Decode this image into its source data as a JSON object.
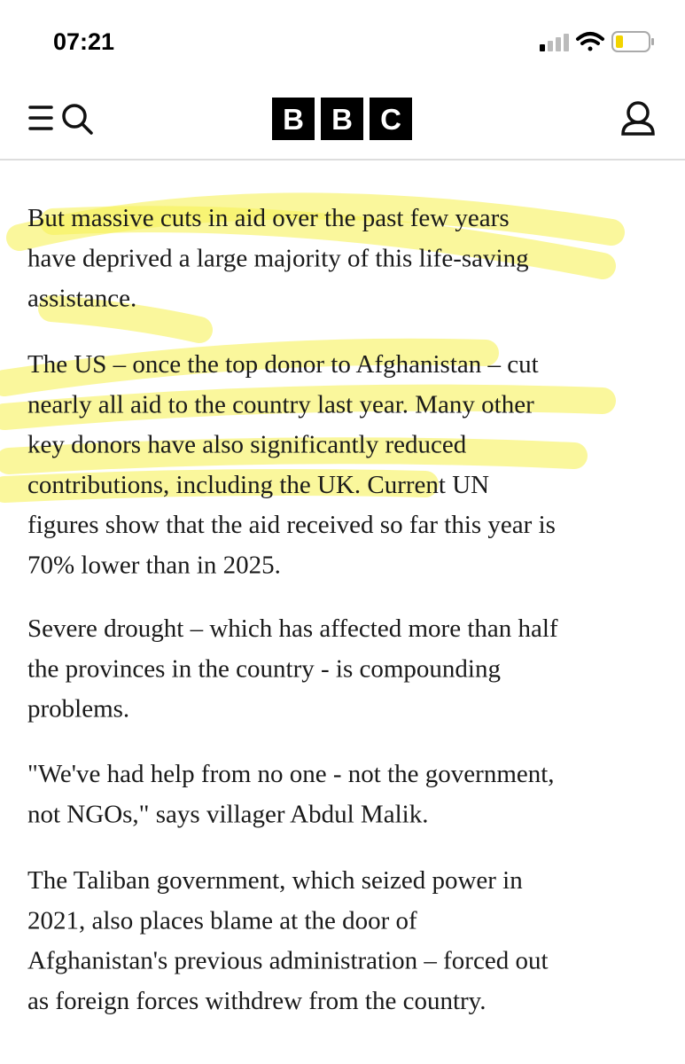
{
  "status_bar": {
    "time": "07:21"
  },
  "header": {
    "logo": [
      "B",
      "B",
      "C"
    ]
  },
  "paragraphs": [
    [
      "But massive cuts in aid over the past few years",
      "have deprived a large majority of this life-saving",
      "assistance."
    ],
    [
      "The US – once the top donor to Afghanistan – cut",
      "nearly all aid to the country last year. Many other",
      "key donors have also significantly reduced",
      "contributions, including the UK. Current UN",
      "figures show that the aid received so far this year is",
      "70% lower than in 2025."
    ],
    [
      "Severe drought – which has affected more than half",
      "the provinces in the country - is compounding",
      "problems."
    ],
    [
      "\"We've had help from no one - not the government,",
      "not NGOs,\" says villager Abdul Malik."
    ],
    [
      "The Taliban government, which seized power in",
      "2021, also places blame at the door of",
      "Afghanistan's previous administration – forced out",
      "as foreign forces withdrew from the country."
    ]
  ]
}
